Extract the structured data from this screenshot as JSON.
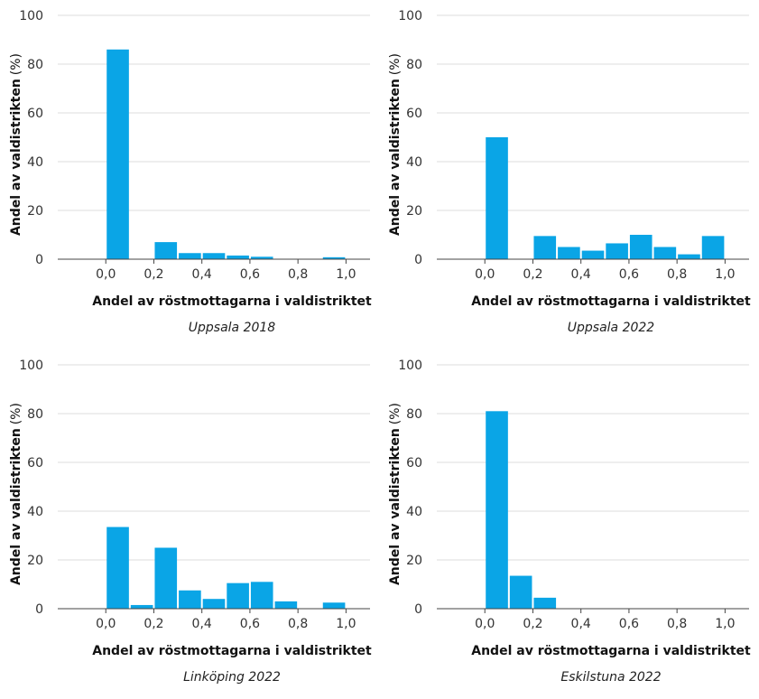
{
  "chart_data": [
    {
      "type": "bar",
      "caption": "Uppsala 2018",
      "xlabel": "Andel av röstmottagarna i valdistriktet",
      "ylabel": "Andel av valdistrikten",
      "ylabel_unit": "(%)",
      "ylim": [
        0,
        100
      ],
      "yticks": [
        "0",
        "20",
        "40",
        "60",
        "80",
        "100"
      ],
      "xlim": [
        -0.2,
        1.1
      ],
      "xticks": [
        "0,0",
        "0,2",
        "0,4",
        "0,6",
        "0,8",
        "1,0"
      ],
      "bin_width": 0.1,
      "bins": [
        0.0,
        0.1,
        0.2,
        0.3,
        0.4,
        0.5,
        0.6,
        0.7,
        0.8,
        0.9
      ],
      "values": [
        86,
        0,
        7,
        2.5,
        2.5,
        1.5,
        1,
        0,
        0,
        0.8
      ]
    },
    {
      "type": "bar",
      "caption": "Uppsala 2022",
      "xlabel": "Andel av röstmottagarna i valdistriktet",
      "ylabel": "Andel av valdistrikten",
      "ylabel_unit": "(%)",
      "ylim": [
        0,
        100
      ],
      "yticks": [
        "0",
        "20",
        "40",
        "60",
        "80",
        "100"
      ],
      "xlim": [
        -0.2,
        1.1
      ],
      "xticks": [
        "0,0",
        "0,2",
        "0,4",
        "0,6",
        "0,8",
        "1,0"
      ],
      "bin_width": 0.1,
      "bins": [
        0.0,
        0.1,
        0.2,
        0.3,
        0.4,
        0.5,
        0.6,
        0.7,
        0.8,
        0.9
      ],
      "values": [
        50,
        0,
        9.5,
        5,
        3.5,
        6.5,
        10,
        5,
        2,
        9.5
      ]
    },
    {
      "type": "bar",
      "caption": "Linköping 2022",
      "xlabel": "Andel av röstmottagarna i valdistriktet",
      "ylabel": "Andel av valdistrikten",
      "ylabel_unit": "(%)",
      "ylim": [
        0,
        100
      ],
      "yticks": [
        "0",
        "20",
        "40",
        "60",
        "80",
        "100"
      ],
      "xlim": [
        -0.2,
        1.1
      ],
      "xticks": [
        "0,0",
        "0,2",
        "0,4",
        "0,6",
        "0,8",
        "1,0"
      ],
      "bin_width": 0.1,
      "bins": [
        0.0,
        0.1,
        0.2,
        0.3,
        0.4,
        0.5,
        0.6,
        0.7,
        0.8,
        0.9
      ],
      "values": [
        33.5,
        1.5,
        25,
        7.5,
        4,
        10.5,
        11,
        3,
        0,
        2.5
      ]
    },
    {
      "type": "bar",
      "caption": "Eskilstuna 2022",
      "xlabel": "Andel av röstmottagarna i valdistriktet",
      "ylabel": "Andel av valdistrikten",
      "ylabel_unit": "(%)",
      "ylim": [
        0,
        100
      ],
      "yticks": [
        "0",
        "20",
        "40",
        "60",
        "80",
        "100"
      ],
      "xlim": [
        -0.2,
        1.1
      ],
      "xticks": [
        "0,0",
        "0,2",
        "0,4",
        "0,6",
        "0,8",
        "1,0"
      ],
      "bin_width": 0.1,
      "bins": [
        0.0,
        0.1,
        0.2,
        0.3,
        0.4,
        0.5,
        0.6,
        0.7,
        0.8,
        0.9
      ],
      "values": [
        81,
        13.5,
        4.5,
        0,
        0,
        0,
        0,
        0,
        0,
        0
      ]
    }
  ]
}
